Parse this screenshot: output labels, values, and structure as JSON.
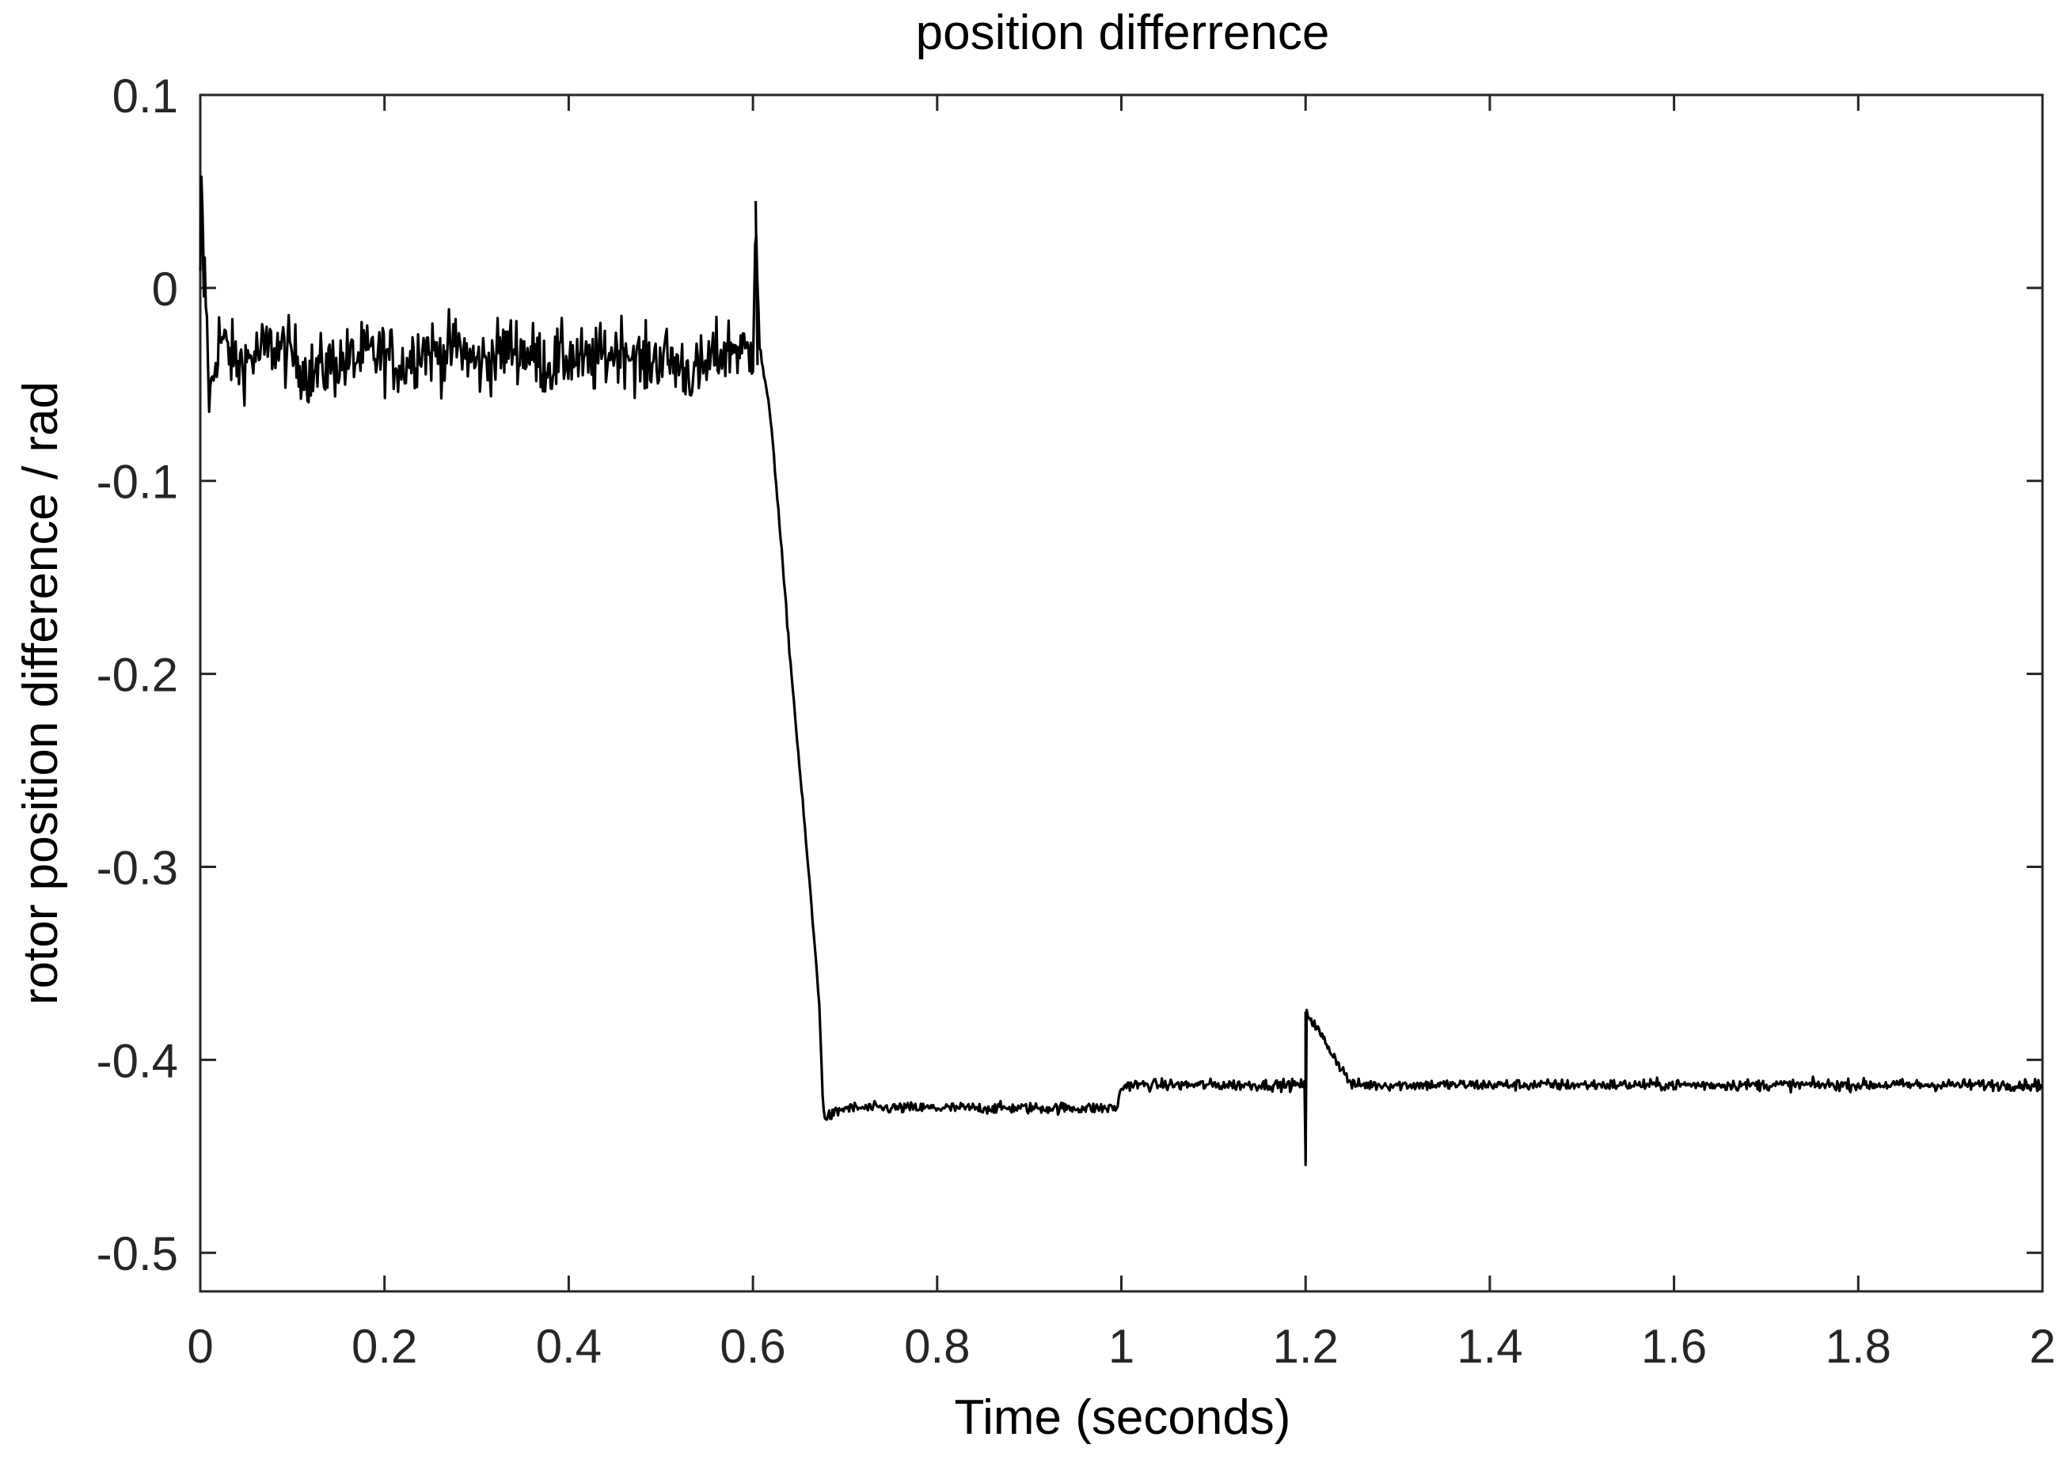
{
  "chart_data": {
    "type": "line",
    "title": "position differrence",
    "xlabel": "Time (seconds)",
    "ylabel": "rotor position difference / rad",
    "xlim": [
      0,
      2
    ],
    "ylim": [
      -0.52,
      0.1
    ],
    "xticks": [
      0,
      0.2,
      0.4,
      0.6,
      0.8,
      1,
      1.2,
      1.4,
      1.6,
      1.8,
      2
    ],
    "xtick_labels": [
      "0",
      "0.2",
      "0.4",
      "0.6",
      "0.8",
      "1",
      "1.2",
      "1.4",
      "1.6",
      "1.8",
      "2"
    ],
    "yticks": [
      0.1,
      0,
      -0.1,
      -0.2,
      -0.3,
      -0.4,
      -0.5
    ],
    "ytick_labels": [
      "0.1",
      "0",
      "-0.1",
      "-0.2",
      "-0.3",
      "-0.4",
      "-0.5"
    ],
    "grid": false,
    "box": true,
    "line_color": "#000000",
    "series": [
      {
        "x": [
          0,
          0.001,
          0.003,
          0.006,
          0.01,
          0.02,
          0.04,
          0.06,
          0.08,
          0.1,
          0.12,
          0.14,
          0.16,
          0.18,
          0.2,
          0.22,
          0.24,
          0.26,
          0.28,
          0.3,
          0.32,
          0.34,
          0.36,
          0.38,
          0.4,
          0.42,
          0.44,
          0.46,
          0.48,
          0.5,
          0.52,
          0.54,
          0.56,
          0.58,
          0.595,
          0.6,
          0.603,
          0.607,
          0.62,
          0.64,
          0.66,
          0.672,
          0.676,
          0.68,
          0.7,
          0.75,
          0.8,
          0.85,
          0.9,
          0.95,
          0.995,
          1.0,
          1.005,
          1.05,
          1.1,
          1.15,
          1.199,
          1.2,
          1.201,
          1.25,
          1.3,
          1.35,
          1.4,
          1.5,
          1.6,
          1.7,
          1.8,
          1.9,
          2.0
        ],
        "y": [
          0.0,
          0.055,
          0.02,
          -0.005,
          -0.06,
          -0.025,
          -0.04,
          -0.035,
          -0.03,
          -0.035,
          -0.045,
          -0.04,
          -0.038,
          -0.035,
          -0.035,
          -0.04,
          -0.03,
          -0.035,
          -0.03,
          -0.04,
          -0.035,
          -0.03,
          -0.035,
          -0.04,
          -0.035,
          -0.04,
          -0.035,
          -0.03,
          -0.04,
          -0.035,
          -0.04,
          -0.045,
          -0.035,
          -0.03,
          -0.035,
          -0.03,
          0.045,
          -0.03,
          -0.07,
          -0.19,
          -0.3,
          -0.37,
          -0.425,
          -0.43,
          -0.425,
          -0.425,
          -0.425,
          -0.425,
          -0.425,
          -0.425,
          -0.425,
          -0.415,
          -0.413,
          -0.413,
          -0.413,
          -0.413,
          -0.413,
          -0.455,
          -0.375,
          -0.413,
          -0.413,
          -0.413,
          -0.413,
          -0.413,
          -0.413,
          -0.413,
          -0.413,
          -0.413,
          -0.413
        ]
      }
    ]
  }
}
